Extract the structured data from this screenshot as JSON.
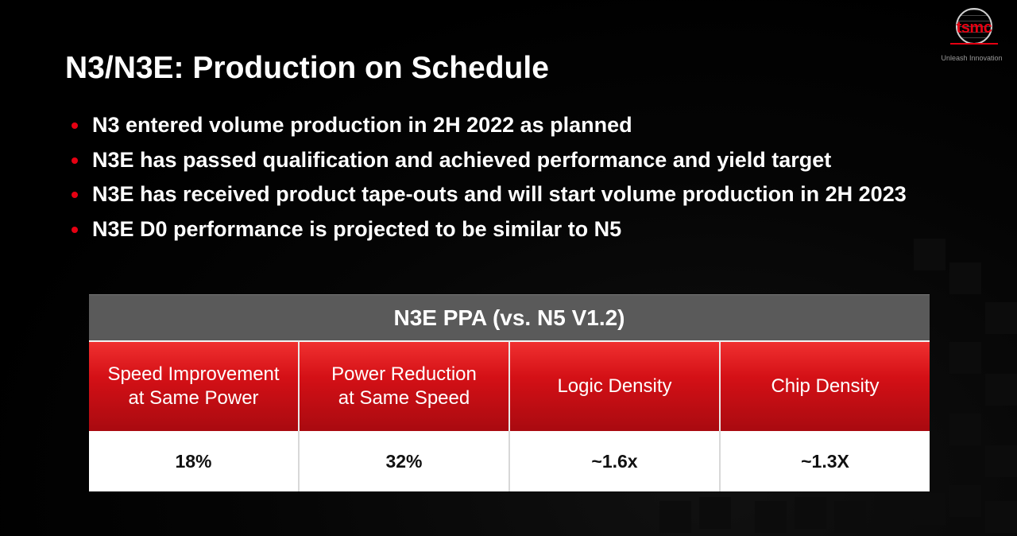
{
  "slide": {
    "title": "N3/N3E: Production on Schedule",
    "bullets": [
      "N3 entered volume production in 2H 2022 as planned",
      "N3E has passed qualification and achieved performance and yield target",
      "N3E has received product tape-outs and will start volume production in 2H 2023",
      "N3E D0 performance is projected to be similar to N5"
    ]
  },
  "logo": {
    "text": "tsmc",
    "tagline": "Unleash Innovation"
  },
  "table": {
    "header": "N3E PPA (vs. N5 V1.2)",
    "columns": [
      {
        "label": "Speed Improvement\nat Same Power",
        "value": "18%"
      },
      {
        "label": "Power Reduction\nat Same Speed",
        "value": "32%"
      },
      {
        "label": "Logic Density",
        "value": "~1.6x"
      },
      {
        "label": "Chip Density",
        "value": "~1.3X"
      }
    ]
  },
  "colors": {
    "accent": "#e60012",
    "background": "#000000",
    "header_gray": "#5a5a5a"
  }
}
